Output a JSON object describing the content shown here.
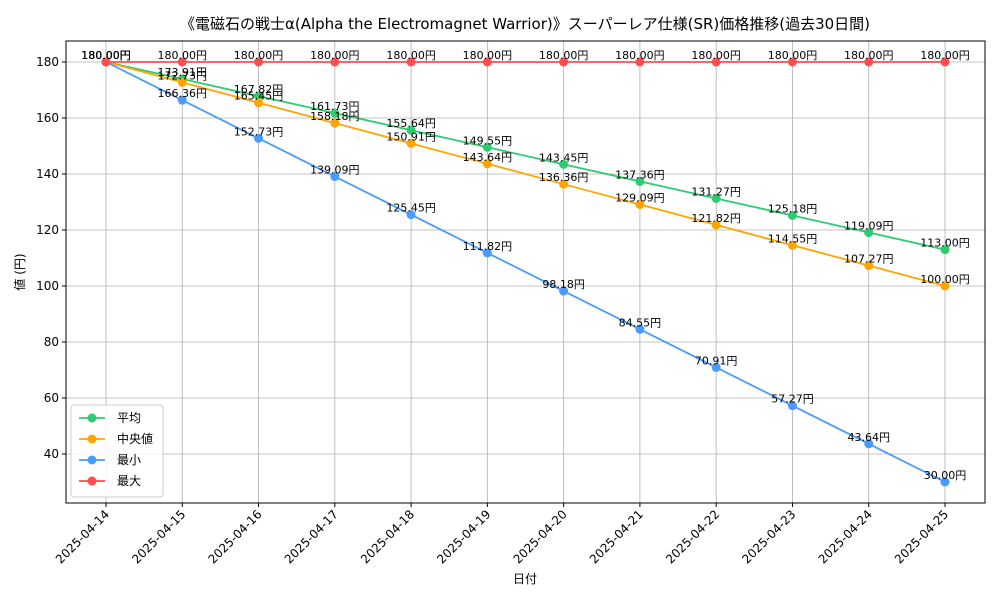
{
  "chart_data": {
    "type": "line",
    "title": "《電磁石の戦士α(Alpha the Electromagnet Warrior)》スーパーレア仕様(SR)価格推移(過去30日間)",
    "xlabel": "日付",
    "ylabel": "値 (円)",
    "unit_suffix": "円",
    "categories": [
      "2025-04-14",
      "2025-04-15",
      "2025-04-16",
      "2025-04-17",
      "2025-04-18",
      "2025-04-19",
      "2025-04-20",
      "2025-04-21",
      "2025-04-22",
      "2025-04-23",
      "2025-04-24",
      "2025-04-25"
    ],
    "ylim": [
      22.5,
      187.5
    ],
    "yticks": [
      40,
      60,
      80,
      100,
      120,
      140,
      160,
      180
    ],
    "grid": true,
    "legend_position": "lower-left",
    "series": [
      {
        "name": "平均",
        "color": "#2ecc71",
        "values": [
          180.0,
          173.91,
          167.82,
          161.73,
          155.64,
          149.55,
          143.45,
          137.36,
          131.27,
          125.18,
          119.09,
          113.0
        ]
      },
      {
        "name": "中央値",
        "color": "#ffa500",
        "values": [
          180.0,
          172.73,
          165.45,
          158.18,
          150.91,
          143.64,
          136.36,
          129.09,
          121.82,
          114.55,
          107.27,
          100.0
        ]
      },
      {
        "name": "最小",
        "color": "#4a9bff",
        "values": [
          180.0,
          166.36,
          152.73,
          139.09,
          125.45,
          111.82,
          98.18,
          84.55,
          70.91,
          57.27,
          43.64,
          30.0
        ]
      },
      {
        "name": "最大",
        "color": "#ff4d4d",
        "values": [
          180.0,
          180.0,
          180.0,
          180.0,
          180.0,
          180.0,
          180.0,
          180.0,
          180.0,
          180.0,
          180.0,
          180.0
        ]
      }
    ]
  }
}
